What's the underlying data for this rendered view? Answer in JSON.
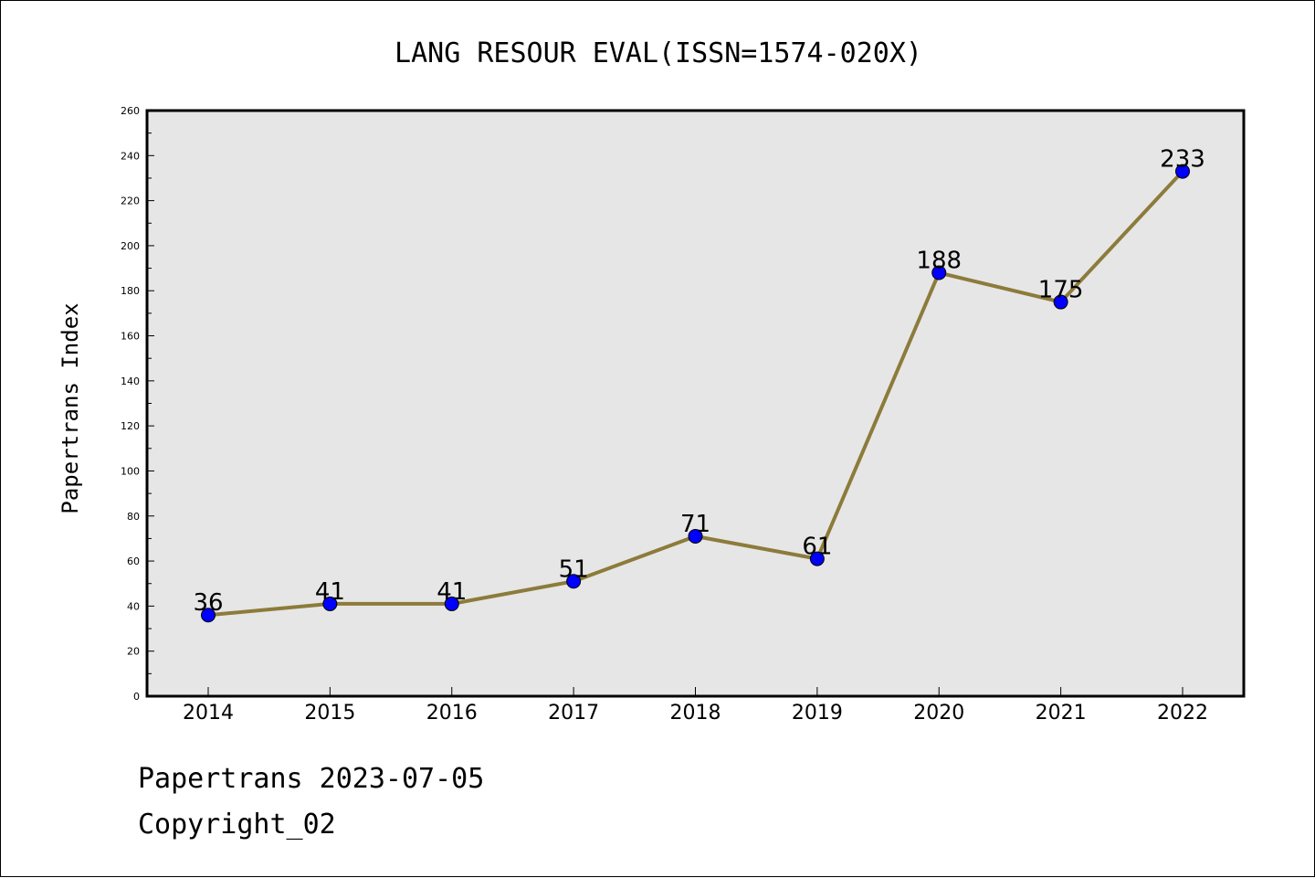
{
  "chart_data": {
    "type": "line",
    "title": "LANG RESOUR EVAL(ISSN=1574-020X)",
    "ylabel": "Papertrans Index",
    "xlabel": "",
    "categories": [
      "2014",
      "2015",
      "2016",
      "2017",
      "2018",
      "2019",
      "2020",
      "2021",
      "2022"
    ],
    "values": [
      36,
      41,
      41,
      51,
      71,
      61,
      188,
      175,
      233
    ],
    "data_labels": [
      "36",
      "41",
      "41",
      "51",
      "71",
      "61",
      "188",
      "175",
      "233"
    ],
    "ylim": [
      0,
      260
    ],
    "y_ticks": [
      "0",
      "20",
      "40",
      "60",
      "80",
      "100",
      "120",
      "140",
      "160",
      "180",
      "200",
      "220",
      "240",
      "260"
    ],
    "grid": false,
    "legend": "none",
    "colors": {
      "line": "#8c7b3a",
      "marker": "#0000ff",
      "plot_background": "#e6e6e6",
      "frame": "#000000"
    }
  },
  "footer": {
    "date_line": "Papertrans 2023-07-05",
    "copyright_line": "Copyright_02"
  }
}
